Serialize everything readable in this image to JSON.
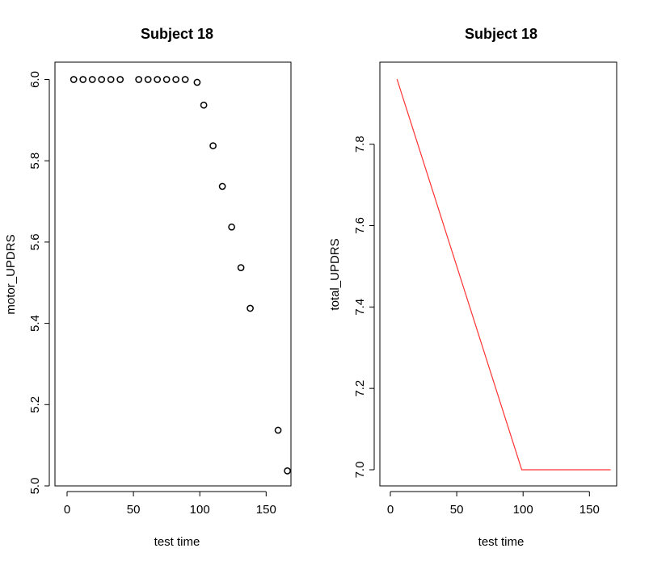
{
  "chart_data": [
    {
      "type": "scatter",
      "title": "Subject 18",
      "xlabel": "test time",
      "ylabel": "motor_UPDRS",
      "xlim": [
        0,
        170
      ],
      "ylim": [
        5.0,
        6.04
      ],
      "xticks": [
        0,
        50,
        100,
        150
      ],
      "yticks": [
        5.0,
        5.2,
        5.4,
        5.6,
        5.8,
        6.0
      ],
      "ytick_labels": [
        "5.0",
        "5.2",
        "5.4",
        "5.6",
        "5.8",
        "6.0"
      ],
      "marker": "open-circle",
      "color": "#000000",
      "x": [
        5,
        12,
        19,
        26,
        33,
        40,
        54,
        61,
        68,
        75,
        82,
        89,
        98,
        103,
        110,
        117,
        124,
        131,
        138,
        159,
        166
      ],
      "y": [
        6.0,
        6.0,
        6.0,
        6.0,
        6.0,
        6.0,
        6.0,
        6.0,
        6.0,
        6.0,
        6.0,
        6.0,
        5.993,
        5.937,
        5.837,
        5.737,
        5.637,
        5.537,
        5.437,
        5.137,
        5.037
      ]
    },
    {
      "type": "line",
      "title": "Subject 18",
      "xlabel": "test time",
      "ylabel": "total_UPDRS",
      "xlim": [
        0,
        170
      ],
      "ylim": [
        6.98,
        7.97
      ],
      "xticks": [
        0,
        50,
        100,
        150
      ],
      "yticks": [
        7.0,
        7.2,
        7.4,
        7.6,
        7.8
      ],
      "ytick_labels": [
        "7.0",
        "7.2",
        "7.4",
        "7.6",
        "7.8"
      ],
      "color": "#ff3333",
      "x": [
        5,
        99,
        166
      ],
      "y": [
        7.96,
        7.0,
        7.0
      ]
    }
  ]
}
